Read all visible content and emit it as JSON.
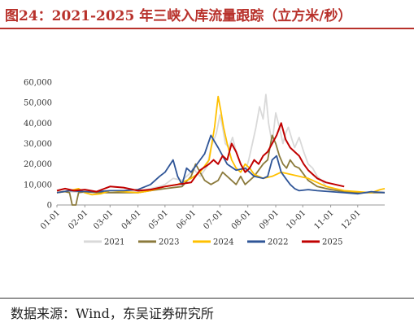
{
  "figure": {
    "title": "图24：2021-2025 年三峡入库流量跟踪（立方米/秒）",
    "source": "数据来源：Wind，东吴证券研究所"
  },
  "chart_data": {
    "type": "line",
    "title": "2021-2025 年三峡入库流量跟踪（立方米/秒）",
    "xlabel": "",
    "ylabel": "",
    "ylim": [
      0,
      60000
    ],
    "yticks": [
      "0",
      "10,000",
      "20,000",
      "30,000",
      "40,000",
      "50,000",
      "60,000"
    ],
    "xticks": [
      "01-01",
      "02-01",
      "03-01",
      "04-01",
      "05-01",
      "06-01",
      "07-01",
      "08-01",
      "09-01",
      "10-01",
      "11-01",
      "12-01"
    ],
    "legend_position": "bottom",
    "grid": false,
    "x_unit": "day of year (1-365)",
    "series": [
      {
        "name": "2021",
        "color": "#d9d9d9",
        "x": [
          1,
          15,
          32,
          45,
          60,
          75,
          91,
          105,
          115,
          121,
          130,
          140,
          150,
          152,
          160,
          168,
          172,
          178,
          182,
          185,
          188,
          192,
          196,
          200,
          205,
          210,
          214,
          218,
          222,
          226,
          230,
          233,
          236,
          240,
          244,
          248,
          252,
          255,
          258,
          262,
          265,
          270,
          275,
          280,
          285,
          290,
          295,
          300,
          305,
          310,
          320,
          335,
          350,
          365
        ],
        "y": [
          6500,
          6500,
          6000,
          6500,
          6000,
          6000,
          6500,
          8000,
          9000,
          10000,
          13000,
          12000,
          16000,
          18000,
          14000,
          19000,
          28000,
          35000,
          44000,
          38000,
          30000,
          28000,
          33000,
          26000,
          20000,
          16000,
          22000,
          30000,
          38000,
          48000,
          42000,
          54000,
          40000,
          30000,
          45000,
          38000,
          30000,
          35000,
          38000,
          32000,
          28000,
          33000,
          26000,
          20000,
          18000,
          14000,
          12000,
          9000,
          8000,
          7500,
          6500,
          6000,
          6000,
          6500
        ]
      },
      {
        "name": "2023",
        "color": "#8b7a3c",
        "x": [
          1,
          10,
          15,
          18,
          20,
          22,
          25,
          32,
          45,
          60,
          75,
          91,
          105,
          121,
          140,
          150,
          155,
          160,
          165,
          172,
          180,
          185,
          190,
          195,
          200,
          205,
          210,
          220,
          230,
          235,
          240,
          244,
          248,
          252,
          256,
          260,
          265,
          270,
          280,
          290,
          305,
          320,
          335,
          350,
          365
        ],
        "y": [
          6000,
          6500,
          6000,
          0,
          0,
          0,
          6000,
          6500,
          6000,
          6000,
          6000,
          6000,
          7000,
          8000,
          9000,
          14000,
          20000,
          16000,
          12000,
          10000,
          12000,
          16000,
          14000,
          12000,
          10000,
          14000,
          10000,
          14000,
          20000,
          22000,
          34000,
          30000,
          24000,
          20000,
          18000,
          22000,
          19000,
          18000,
          12000,
          9000,
          7500,
          6500,
          6000,
          6000,
          6000
        ]
      },
      {
        "name": "2024",
        "color": "#ffc000",
        "x": [
          1,
          15,
          25,
          32,
          40,
          50,
          60,
          75,
          91,
          105,
          121,
          135,
          150,
          160,
          170,
          176,
          180,
          183,
          186,
          190,
          195,
          200,
          205,
          210,
          215,
          220,
          225,
          230,
          240,
          250,
          260,
          270,
          280,
          290,
          300,
          310,
          320,
          335,
          350,
          360,
          365
        ],
        "y": [
          6000,
          7000,
          8000,
          6000,
          5000,
          5500,
          7000,
          6500,
          6000,
          7000,
          9000,
          10000,
          13000,
          16000,
          22000,
          38000,
          53000,
          46000,
          38000,
          30000,
          22000,
          18000,
          16000,
          20000,
          18000,
          15000,
          14000,
          13000,
          14000,
          16000,
          15000,
          14000,
          13000,
          11000,
          9000,
          8000,
          7000,
          6500,
          6000,
          7500,
          8000
        ]
      },
      {
        "name": "2022",
        "color": "#2f5597",
        "x": [
          1,
          15,
          32,
          45,
          60,
          75,
          91,
          105,
          115,
          121,
          130,
          135,
          140,
          145,
          150,
          160,
          165,
          172,
          180,
          190,
          200,
          210,
          220,
          230,
          235,
          240,
          245,
          250,
          255,
          260,
          265,
          270,
          280,
          290,
          305,
          320,
          335,
          350,
          365
        ],
        "y": [
          6000,
          7000,
          6500,
          6500,
          7000,
          7000,
          7500,
          10000,
          14000,
          16000,
          22000,
          14000,
          10000,
          18000,
          16000,
          22000,
          25000,
          34000,
          28000,
          20000,
          17000,
          18000,
          14000,
          13000,
          14000,
          22000,
          24000,
          16000,
          13000,
          10000,
          8000,
          7000,
          7500,
          7000,
          6500,
          6000,
          5500,
          6500,
          6000
        ]
      },
      {
        "name": "2025",
        "color": "#c00000",
        "x": [
          1,
          10,
          20,
          32,
          45,
          60,
          75,
          91,
          105,
          121,
          135,
          150,
          160,
          170,
          175,
          180,
          185,
          190,
          195,
          200,
          205,
          210,
          215,
          220,
          225,
          230,
          235,
          240,
          245,
          250,
          255,
          260,
          265,
          270,
          275,
          280,
          290,
          300,
          310,
          320
        ],
        "y": [
          7000,
          8000,
          7000,
          7500,
          6500,
          9000,
          8500,
          7000,
          7500,
          9000,
          10000,
          11000,
          17000,
          20000,
          22000,
          20000,
          24000,
          22000,
          30000,
          26000,
          20000,
          16000,
          18000,
          22000,
          20000,
          24000,
          26000,
          30000,
          34000,
          40000,
          32000,
          28000,
          26000,
          24000,
          20000,
          17000,
          13000,
          11000,
          10000,
          9000
        ]
      }
    ]
  }
}
